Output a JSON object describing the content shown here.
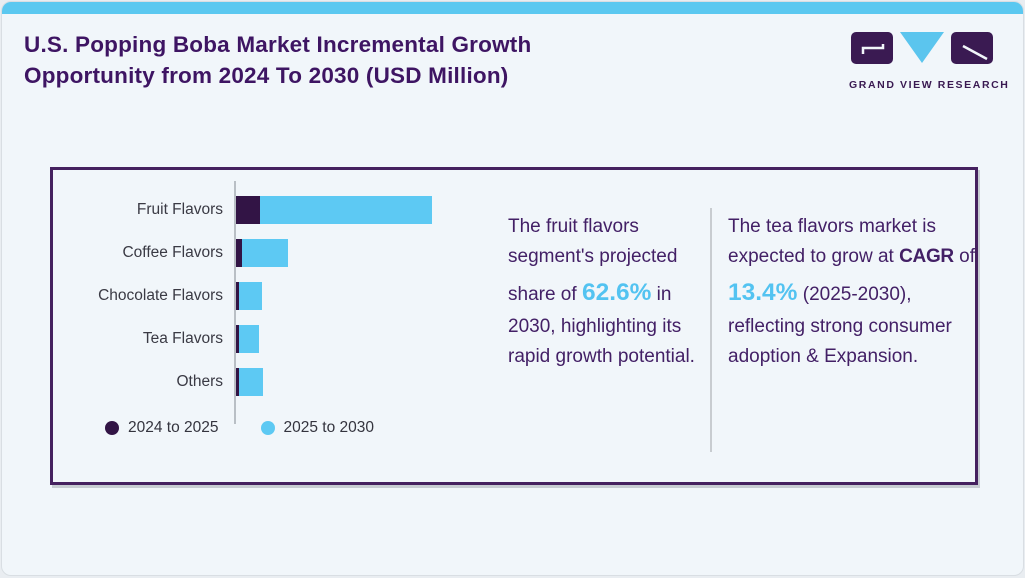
{
  "header": {
    "title_line1": "U.S. Popping Boba Market Incremental Growth",
    "title_line2": "Opportunity from 2024 To 2030 (USD Million)",
    "logo_text": "GRAND VIEW RESEARCH"
  },
  "colors": {
    "accent_strip_blue": "#5bc8f0",
    "title_purple": "#3e1563",
    "card_border_purple": "#45215f",
    "body_text_purple": "#432066",
    "highlight_blue": "#53c3f1",
    "bar_purple": "#321445",
    "bar_blue": "#5dc9f3",
    "axis_gray": "#b9bfc5"
  },
  "chart_data": {
    "type": "bar",
    "orientation": "horizontal",
    "stacked": true,
    "grid": false,
    "legend_position": "bottom-left",
    "title": "U.S. Popping Boba Market Incremental Growth Opportunity from 2024 To 2030 (USD Million)",
    "value_note": "axis unlabeled; values are relative units estimated from bar lengths (USD Million scale not shown)",
    "categories": [
      "Fruit Flavors",
      "Coffee Flavors",
      "Chocolate Flavors",
      "Tea Flavors",
      "Others"
    ],
    "series": [
      {
        "name": "2024 to 2025",
        "color": "#321445",
        "values": [
          25,
          7,
          4,
          4,
          4
        ]
      },
      {
        "name": "2025 to 2030",
        "color": "#5dc9f3",
        "values": [
          172,
          46,
          23,
          20,
          24
        ]
      }
    ]
  },
  "insights": [
    {
      "pre": "The fruit flavors segment's projected share of ",
      "value": "62.6%",
      "post": " in 2030, highlighting its rapid growth potential."
    },
    {
      "pre": "The tea flavors market is expected to grow at ",
      "cagr": "CAGR",
      "mid": " of ",
      "value": "13.4%",
      "post": " (2025‑2030), reflecting strong consumer adoption & Expansion."
    }
  ]
}
